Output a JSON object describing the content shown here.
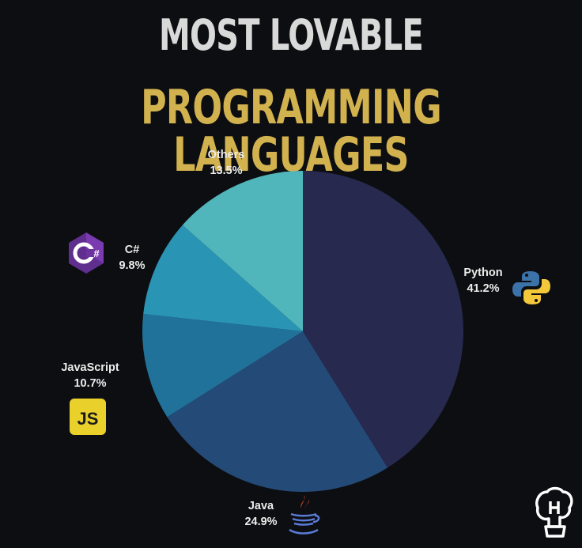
{
  "title_line1": "MOST LOVABLE",
  "title_line2": "PROGRAMMING LANGUAGES",
  "chart_data": {
    "type": "pie",
    "title": "MOST LOVABLE PROGRAMMING LANGUAGES",
    "slices": [
      {
        "label": "Python",
        "value": 41.2,
        "value_label": "41.2%",
        "color": "#27294f",
        "icon": "python-logo-icon"
      },
      {
        "label": "Java",
        "value": 24.9,
        "value_label": "24.9%",
        "color": "#244b78",
        "icon": "java-logo-icon"
      },
      {
        "label": "JavaScript",
        "value": 10.7,
        "value_label": "10.7%",
        "color": "#21729a",
        "icon": "javascript-logo-icon"
      },
      {
        "label": "C#",
        "value": 9.8,
        "value_label": "9.8%",
        "color": "#2a94b5",
        "icon": "csharp-logo-icon"
      },
      {
        "label": "Others",
        "value": 13.5,
        "value_label": "13.5%",
        "color": "#50b6bb",
        "icon": ""
      }
    ],
    "start": "12 o'clock",
    "direction": "clockwise"
  },
  "logo_icon": "brain-head-logo-icon"
}
